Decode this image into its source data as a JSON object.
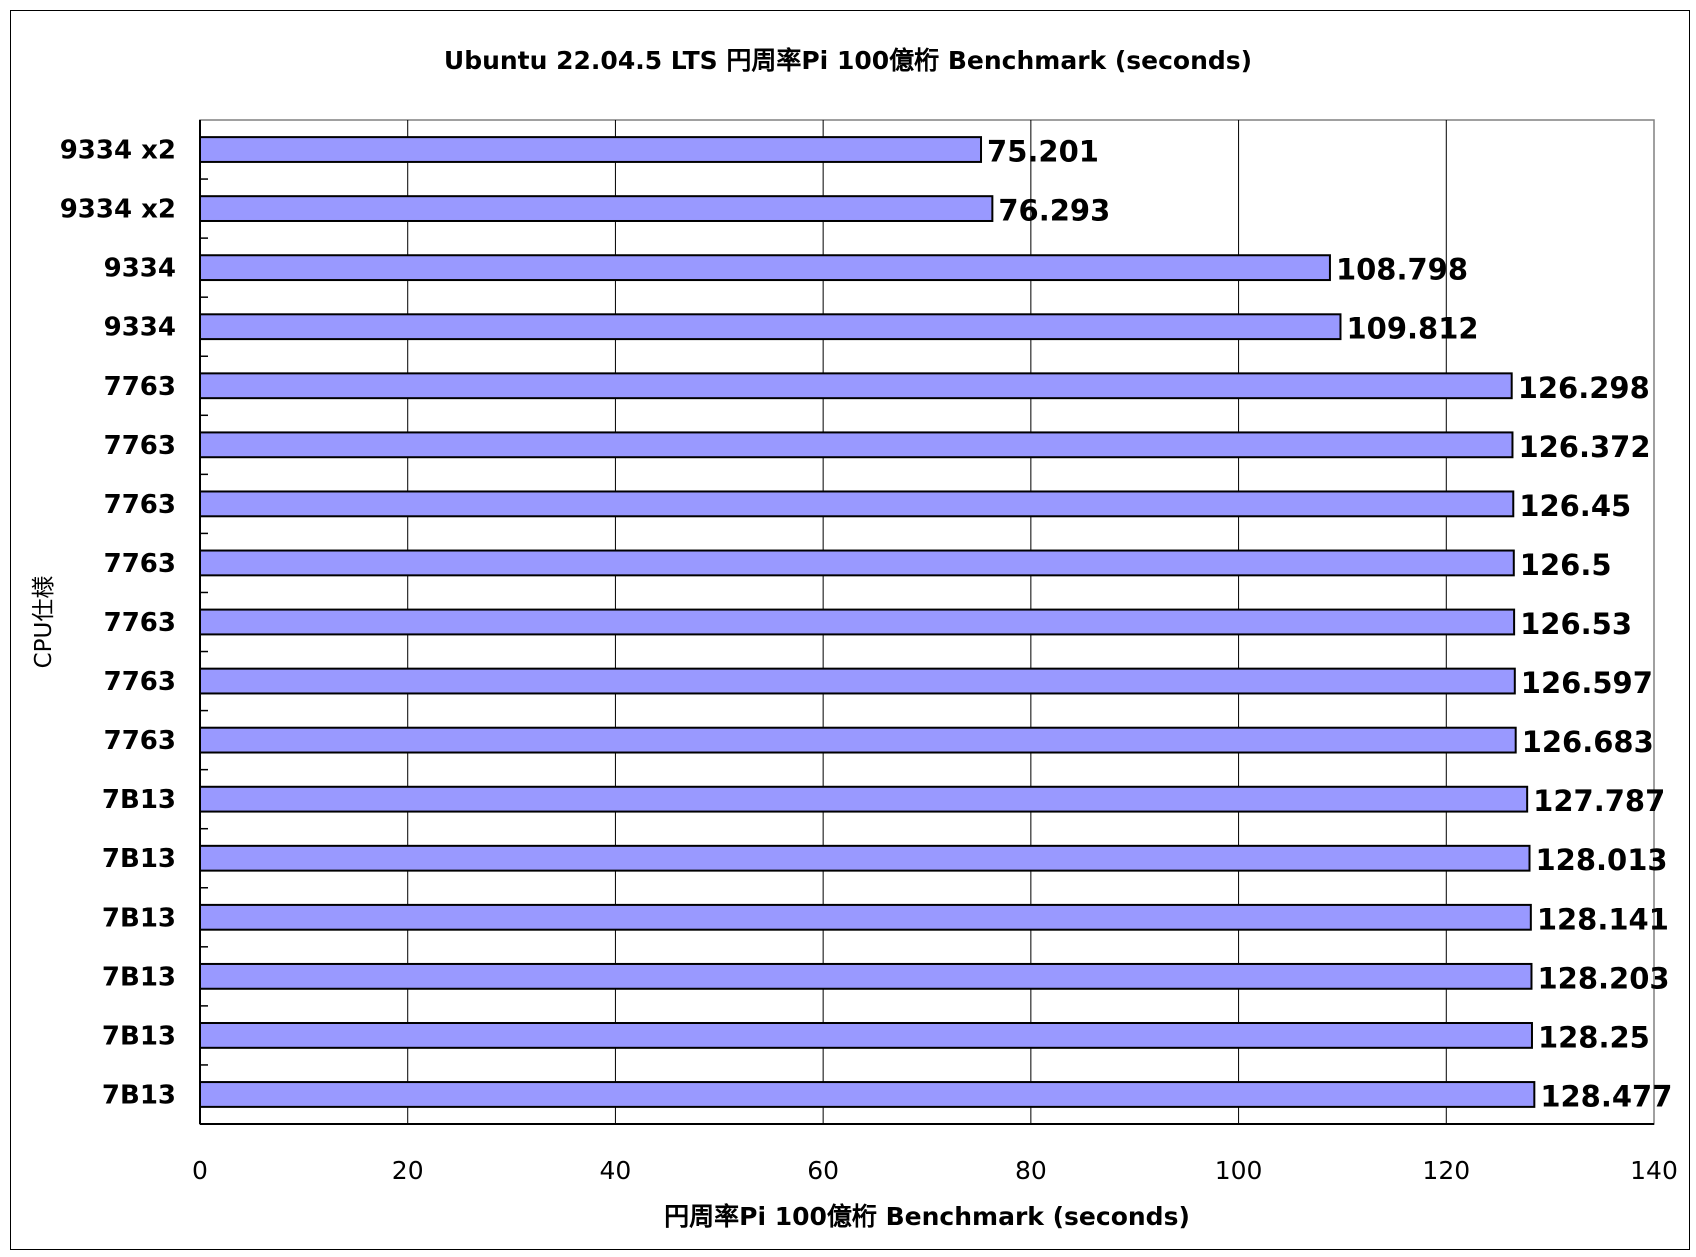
{
  "chart_data": {
    "type": "bar",
    "orientation": "horizontal",
    "title": "Ubuntu 22.04.5 LTS 円周率Pi  100億桁 Benchmark (seconds)",
    "xlabel": "円周率Pi 100億桁 Benchmark (seconds)",
    "ylabel": "CPU仕様",
    "xlim": [
      0,
      140
    ],
    "xticks": [
      0,
      20,
      40,
      60,
      80,
      100,
      120,
      140
    ],
    "grid": true,
    "bar_color": "#9999ff",
    "categories": [
      "9334 x2",
      "9334 x2",
      "9334",
      "9334",
      "7763",
      "7763",
      "7763",
      "7763",
      "7763",
      "7763",
      "7763",
      "7B13",
      "7B13",
      "7B13",
      "7B13",
      "7B13",
      "7B13"
    ],
    "values": [
      75.201,
      76.293,
      108.798,
      109.812,
      126.298,
      126.372,
      126.45,
      126.5,
      126.53,
      126.597,
      126.683,
      127.787,
      128.013,
      128.141,
      128.203,
      128.25,
      128.477
    ],
    "value_labels": [
      "75.201",
      "76.293",
      "108.798",
      "109.812",
      "126.298",
      "126.372",
      "126.45",
      "126.5",
      "126.53",
      "126.597",
      "126.683",
      "127.787",
      "128.013",
      "128.141",
      "128.203",
      "128.25",
      "128.477"
    ]
  }
}
